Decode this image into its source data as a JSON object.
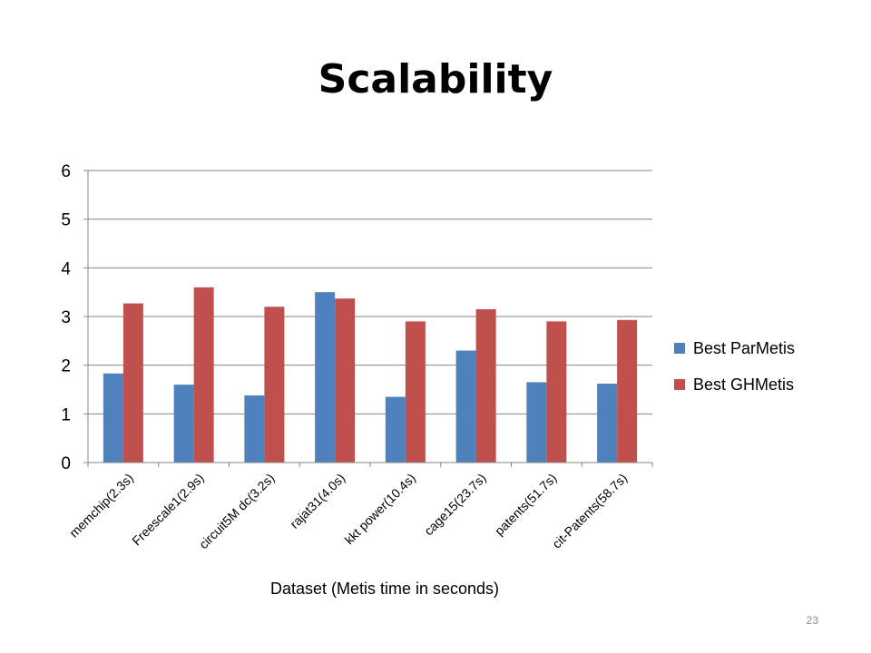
{
  "slide": {
    "title": "Scalability",
    "page_number": "23"
  },
  "chart_data": {
    "type": "bar",
    "categories": [
      "memchip(2.3s)",
      "Freescale1(2.9s)",
      "circuit5M dc(3.2s)",
      "rajat31(4.0s)",
      "kkt power(10.4s)",
      "cage15(23.7s)",
      "patents(51.7s)",
      "cit-Patents(58.7s)"
    ],
    "series": [
      {
        "name": "Best ParMetis",
        "color": "#4f81bd",
        "values": [
          1.83,
          1.6,
          1.38,
          3.5,
          1.35,
          2.3,
          1.65,
          1.62
        ]
      },
      {
        "name": "Best GHMetis",
        "color": "#c0504d",
        "values": [
          3.27,
          3.6,
          3.2,
          3.37,
          2.9,
          3.15,
          2.9,
          2.93
        ]
      }
    ],
    "xlabel": "Dataset (Metis time in seconds)",
    "ylabel": "",
    "ylim": [
      0,
      6
    ],
    "yticks": [
      "0",
      "1",
      "2",
      "3",
      "4",
      "5",
      "6"
    ],
    "grid": true,
    "legend_position": "right"
  }
}
